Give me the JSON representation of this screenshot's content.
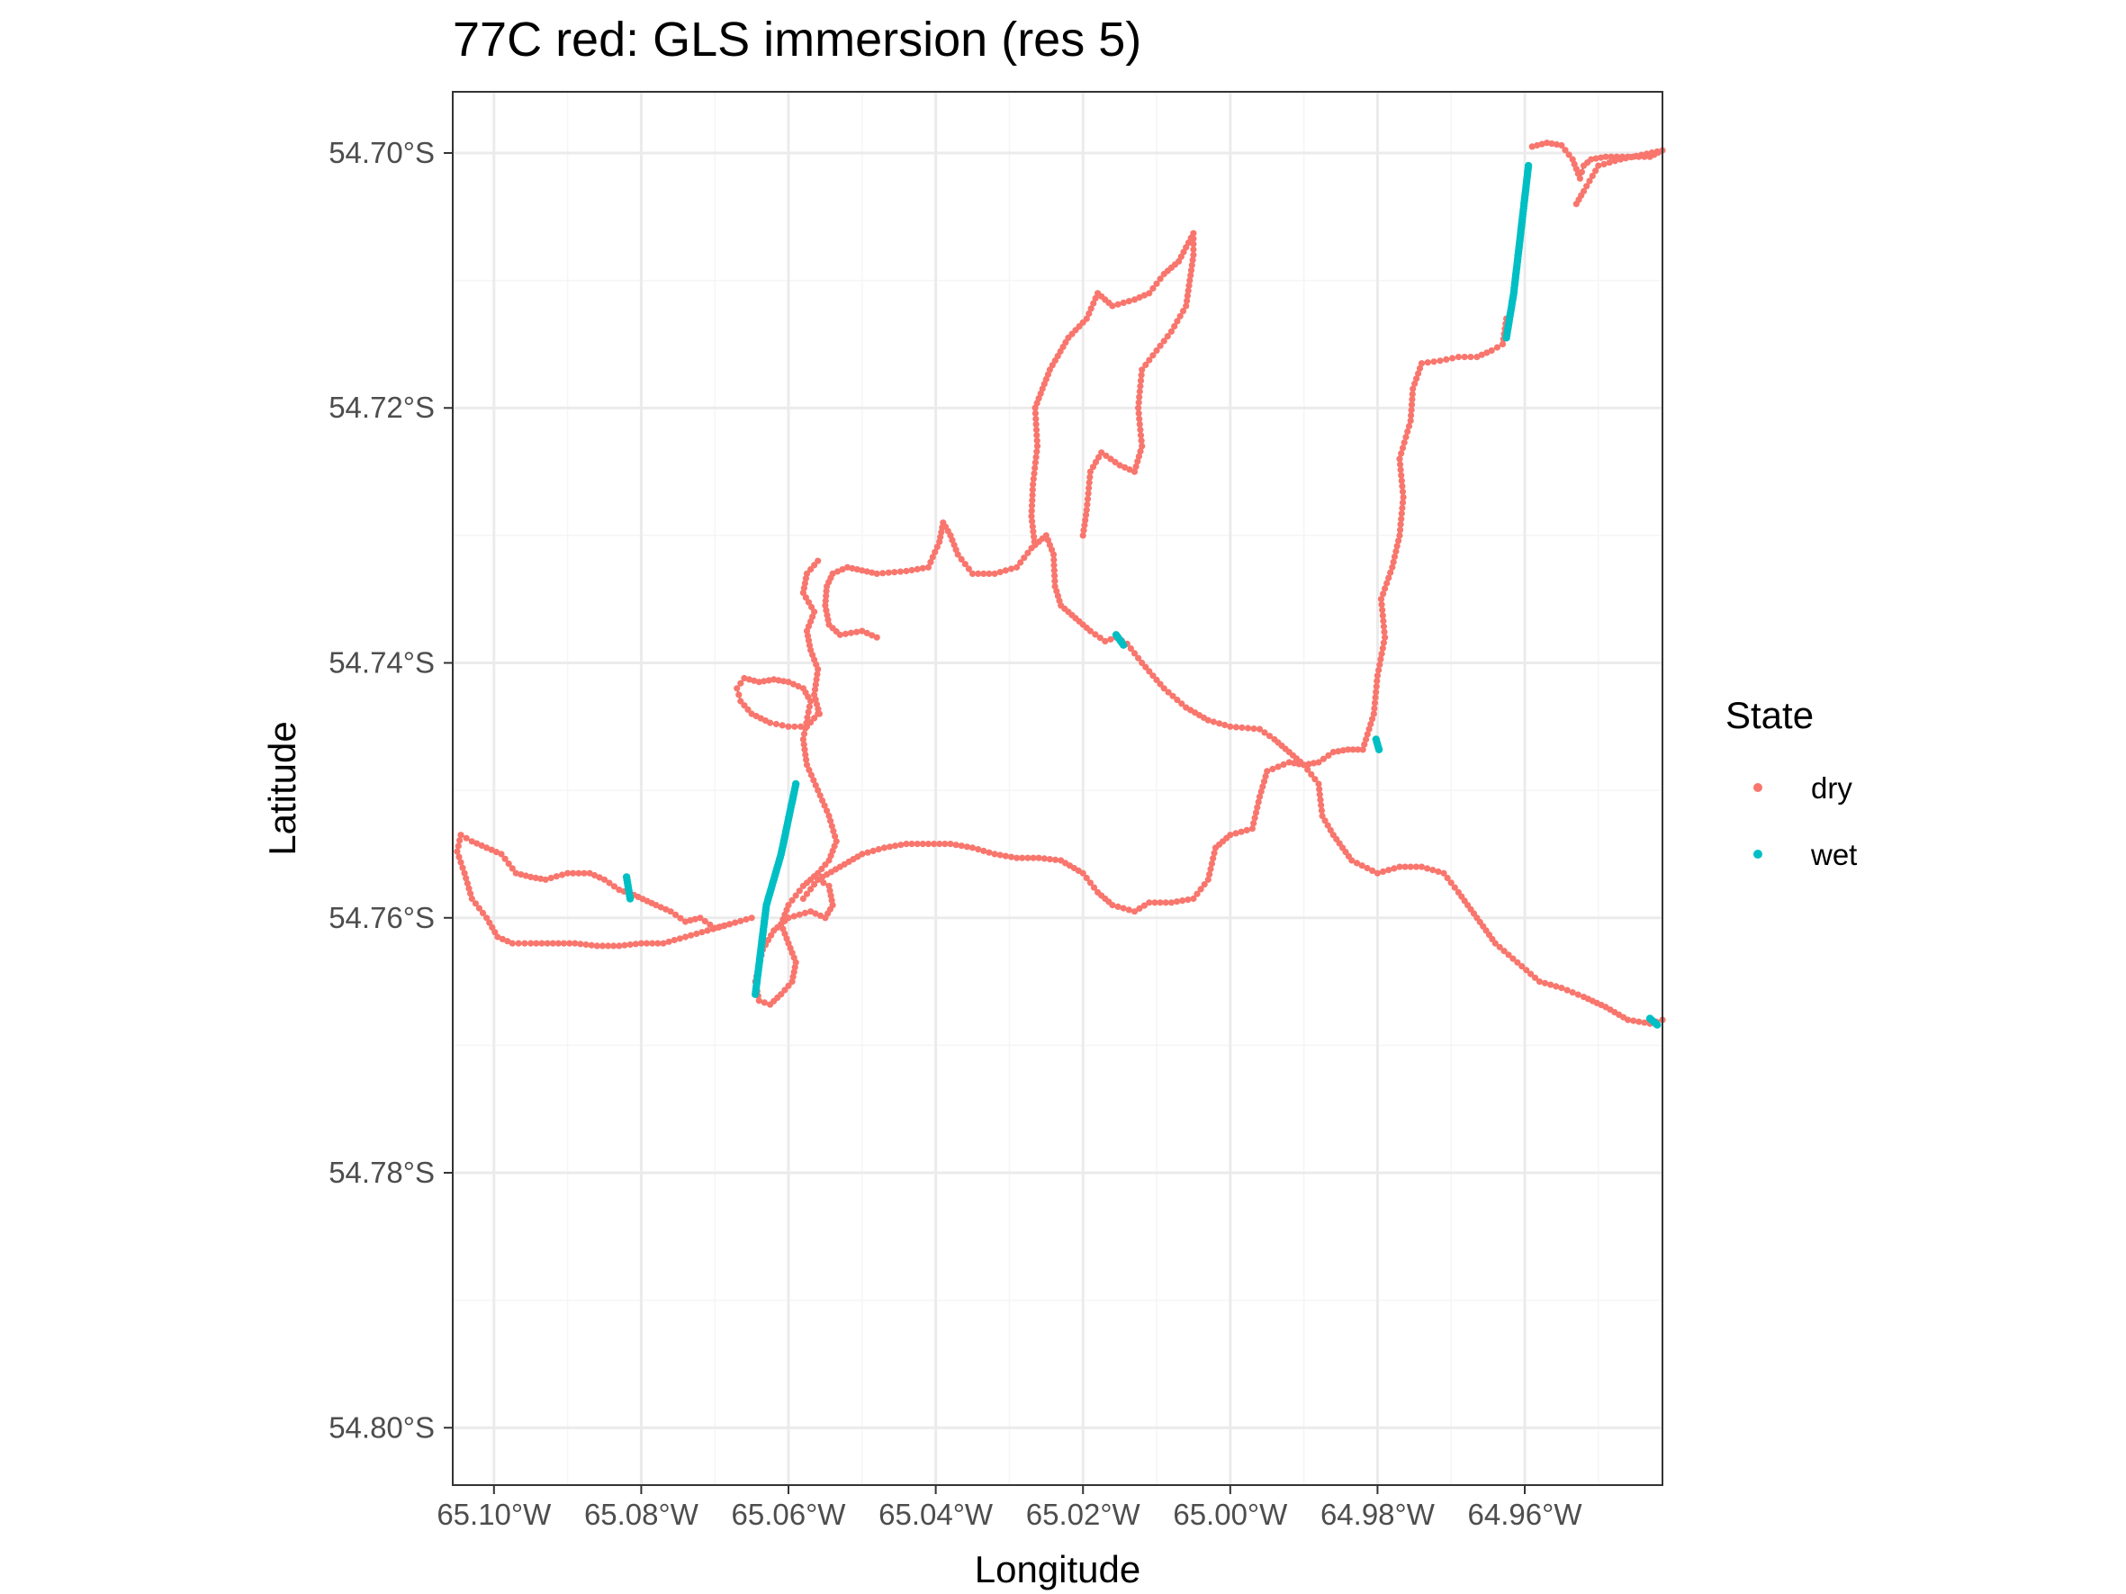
{
  "chart_data": {
    "type": "scatter",
    "title": "77C red: GLS immersion (res 5)",
    "xlabel": "Longitude",
    "ylabel": "Latitude",
    "x_unit": "degrees longitude (negative = W)",
    "y_unit": "degrees latitude (negative = S)",
    "xlim": [
      -65.1056,
      -64.9413
    ],
    "ylim": [
      -54.8045,
      -54.6952
    ],
    "x_ticks": [
      -65.1,
      -65.08,
      -65.06,
      -65.04,
      -65.02,
      -65.0,
      -64.98,
      -64.96
    ],
    "x_tick_labels": [
      "65.10°W",
      "65.08°W",
      "65.06°W",
      "65.04°W",
      "65.02°W",
      "65.00°W",
      "64.98°W",
      "64.96°W"
    ],
    "y_ticks": [
      -54.7,
      -54.72,
      -54.74,
      -54.76,
      -54.78,
      -54.8
    ],
    "y_tick_labels": [
      "54.70°S",
      "54.72°S",
      "54.74°S",
      "54.76°S",
      "54.78°S",
      "54.80°S"
    ],
    "grid": true,
    "legend": {
      "title": "State",
      "placement": "right",
      "entries": [
        "dry",
        "wet"
      ]
    },
    "colors": {
      "dry": "#f8766d",
      "wet": "#00bfc4",
      "path": "#000000",
      "grid": "#ebebeb",
      "panel_border": "#333333"
    },
    "paths": [
      {
        "name": "west-loop",
        "state": "dry",
        "points": [
          [
            -65.048,
            -54.738
          ],
          [
            -65.05,
            -54.7375
          ],
          [
            -65.053,
            -54.7378
          ],
          [
            -65.0545,
            -54.737
          ],
          [
            -65.055,
            -54.7355
          ],
          [
            -65.0548,
            -54.734
          ],
          [
            -65.054,
            -54.733
          ],
          [
            -65.052,
            -54.7325
          ],
          [
            -65.048,
            -54.733
          ],
          [
            -65.044,
            -54.7328
          ],
          [
            -65.041,
            -54.7325
          ],
          [
            -65.0395,
            -54.7305
          ],
          [
            -65.039,
            -54.729
          ],
          [
            -65.038,
            -54.73
          ],
          [
            -65.037,
            -54.7315
          ],
          [
            -65.035,
            -54.733
          ],
          [
            -65.032,
            -54.733
          ],
          [
            -65.029,
            -54.7325
          ],
          [
            -65.027,
            -54.731
          ],
          [
            -65.025,
            -54.73
          ],
          [
            -65.024,
            -54.7315
          ],
          [
            -65.0238,
            -54.734
          ],
          [
            -65.023,
            -54.7355
          ],
          [
            -65.021,
            -54.7365
          ],
          [
            -65.019,
            -54.7375
          ],
          [
            -65.017,
            -54.7383
          ],
          [
            -65.0155,
            -54.738
          ],
          [
            -65.014,
            -54.7385
          ],
          [
            -65.012,
            -54.74
          ],
          [
            -65.009,
            -54.742
          ],
          [
            -65.006,
            -54.7435
          ],
          [
            -65.003,
            -54.7445
          ],
          [
            -65.0,
            -54.745
          ],
          [
            -64.996,
            -54.7452
          ],
          [
            -64.994,
            -54.746
          ],
          [
            -64.992,
            -54.747
          ],
          [
            -64.99,
            -54.748
          ],
          [
            -64.988,
            -54.7478
          ],
          [
            -64.986,
            -54.747
          ],
          [
            -64.984,
            -54.7468
          ],
          [
            -64.982,
            -54.7468
          ]
        ]
      },
      {
        "name": "west-loop-2",
        "state": "dry",
        "points": [
          [
            -65.0558,
            -54.744
          ],
          [
            -65.0565,
            -54.7425
          ],
          [
            -65.056,
            -54.7405
          ],
          [
            -65.057,
            -54.739
          ],
          [
            -65.0575,
            -54.7375
          ],
          [
            -65.0565,
            -54.736
          ],
          [
            -65.058,
            -54.7345
          ],
          [
            -65.0575,
            -54.733
          ],
          [
            -65.056,
            -54.732
          ]
        ]
      },
      {
        "name": "west-blob",
        "state": "dry",
        "points": [
          [
            -65.056,
            -54.744
          ],
          [
            -65.0575,
            -54.745
          ],
          [
            -65.06,
            -54.745
          ],
          [
            -65.0625,
            -54.7447
          ],
          [
            -65.065,
            -54.744
          ],
          [
            -65.0665,
            -54.743
          ],
          [
            -65.067,
            -54.742
          ],
          [
            -65.066,
            -54.7412
          ],
          [
            -65.064,
            -54.7415
          ],
          [
            -65.062,
            -54.7413
          ],
          [
            -65.06,
            -54.7415
          ],
          [
            -65.058,
            -54.742
          ],
          [
            -65.057,
            -54.743
          ],
          [
            -65.058,
            -54.746
          ],
          [
            -65.0575,
            -54.748
          ],
          [
            -65.056,
            -54.75
          ],
          [
            -65.0545,
            -54.752
          ],
          [
            -65.0535,
            -54.754
          ],
          [
            -65.0545,
            -54.7555
          ],
          [
            -65.056,
            -54.7565
          ],
          [
            -65.058,
            -54.7575
          ],
          [
            -65.06,
            -54.759
          ],
          [
            -65.061,
            -54.7605
          ],
          [
            -65.06,
            -54.762
          ],
          [
            -65.059,
            -54.7635
          ],
          [
            -65.0595,
            -54.765
          ],
          [
            -65.061,
            -54.766
          ],
          [
            -65.0625,
            -54.7668
          ],
          [
            -65.064,
            -54.7665
          ],
          [
            -65.0645,
            -54.765
          ],
          [
            -65.0635,
            -54.7625
          ],
          [
            -65.062,
            -54.761
          ],
          [
            -65.06,
            -54.76
          ],
          [
            -65.057,
            -54.7595
          ],
          [
            -65.055,
            -54.76
          ],
          [
            -65.054,
            -54.759
          ],
          [
            -65.0545,
            -54.7575
          ],
          [
            -65.056,
            -54.757
          ]
        ]
      },
      {
        "name": "south-west-loop",
        "state": "dry",
        "points": [
          [
            -65.065,
            -54.76
          ],
          [
            -65.068,
            -54.7605
          ],
          [
            -65.07,
            -54.7608
          ],
          [
            -65.072,
            -54.76
          ],
          [
            -65.074,
            -54.7603
          ],
          [
            -65.076,
            -54.7595
          ],
          [
            -65.078,
            -54.759
          ],
          [
            -65.081,
            -54.7582
          ],
          [
            -65.083,
            -54.7578
          ],
          [
            -65.085,
            -54.757
          ],
          [
            -65.087,
            -54.7565
          ],
          [
            -65.09,
            -54.7565
          ],
          [
            -65.093,
            -54.757
          ],
          [
            -65.095,
            -54.7568
          ],
          [
            -65.097,
            -54.7565
          ],
          [
            -65.099,
            -54.755
          ],
          [
            -65.101,
            -54.7545
          ],
          [
            -65.103,
            -54.754
          ],
          [
            -65.1045,
            -54.7535
          ],
          [
            -65.105,
            -54.7548
          ],
          [
            -65.104,
            -54.7565
          ],
          [
            -65.103,
            -54.7585
          ],
          [
            -65.101,
            -54.76
          ],
          [
            -65.0995,
            -54.7615
          ],
          [
            -65.0975,
            -54.762
          ],
          [
            -65.095,
            -54.762
          ],
          [
            -65.092,
            -54.762
          ],
          [
            -65.089,
            -54.762
          ],
          [
            -65.086,
            -54.7622
          ],
          [
            -65.083,
            -54.7622
          ],
          [
            -65.08,
            -54.762
          ],
          [
            -65.077,
            -54.762
          ],
          [
            -65.074,
            -54.7615
          ],
          [
            -65.071,
            -54.761
          ],
          [
            -65.068,
            -54.7605
          ]
        ]
      },
      {
        "name": "central-south-arc",
        "state": "dry",
        "points": [
          [
            -65.058,
            -54.7585
          ],
          [
            -65.056,
            -54.757
          ],
          [
            -65.053,
            -54.756
          ],
          [
            -65.05,
            -54.755
          ],
          [
            -65.047,
            -54.7545
          ],
          [
            -65.044,
            -54.7542
          ],
          [
            -65.041,
            -54.7542
          ],
          [
            -65.038,
            -54.7542
          ],
          [
            -65.035,
            -54.7545
          ],
          [
            -65.032,
            -54.755
          ],
          [
            -65.029,
            -54.7553
          ],
          [
            -65.026,
            -54.7553
          ],
          [
            -65.023,
            -54.7555
          ],
          [
            -65.02,
            -54.7565
          ],
          [
            -65.018,
            -54.758
          ],
          [
            -65.016,
            -54.759
          ],
          [
            -65.013,
            -54.7595
          ],
          [
            -65.011,
            -54.7588
          ],
          [
            -65.008,
            -54.7588
          ],
          [
            -65.005,
            -54.7585
          ],
          [
            -65.003,
            -54.757
          ],
          [
            -65.002,
            -54.7545
          ],
          [
            -65.0,
            -54.7535
          ],
          [
            -64.997,
            -54.753
          ],
          [
            -64.996,
            -54.7505
          ],
          [
            -64.995,
            -54.7485
          ],
          [
            -64.992,
            -54.7478
          ],
          [
            -64.99,
            -54.748
          ],
          [
            -64.988,
            -54.7495
          ],
          [
            -64.9875,
            -54.752
          ],
          [
            -64.986,
            -54.7535
          ],
          [
            -64.9835,
            -54.7555
          ],
          [
            -64.98,
            -54.7565
          ],
          [
            -64.977,
            -54.756
          ],
          [
            -64.974,
            -54.756
          ],
          [
            -64.971,
            -54.7565
          ],
          [
            -64.969,
            -54.758
          ],
          [
            -64.9665,
            -54.76
          ],
          [
            -64.964,
            -54.762
          ],
          [
            -64.961,
            -54.7635
          ],
          [
            -64.958,
            -54.765
          ],
          [
            -64.955,
            -54.7655
          ],
          [
            -64.952,
            -54.7662
          ],
          [
            -64.949,
            -54.767
          ],
          [
            -64.946,
            -54.768
          ],
          [
            -64.943,
            -54.7683
          ],
          [
            -64.9413,
            -54.768
          ]
        ]
      },
      {
        "name": "north-central-loop",
        "state": "dry",
        "points": [
          [
            -65.0266,
            -54.7305
          ],
          [
            -65.027,
            -54.7285
          ],
          [
            -65.0268,
            -54.726
          ],
          [
            -65.0262,
            -54.723
          ],
          [
            -65.0265,
            -54.72
          ],
          [
            -65.0245,
            -54.717
          ],
          [
            -65.022,
            -54.7145
          ],
          [
            -65.0195,
            -54.713
          ],
          [
            -65.018,
            -54.711
          ],
          [
            -65.016,
            -54.712
          ],
          [
            -65.013,
            -54.7115
          ],
          [
            -65.011,
            -54.711
          ],
          [
            -65.009,
            -54.7095
          ],
          [
            -65.007,
            -54.7085
          ],
          [
            -65.005,
            -54.7063
          ],
          [
            -65.005,
            -54.708
          ],
          [
            -65.006,
            -54.712
          ],
          [
            -65.008,
            -54.714
          ],
          [
            -65.01,
            -54.7155
          ],
          [
            -65.012,
            -54.717
          ],
          [
            -65.0125,
            -54.72
          ],
          [
            -65.012,
            -54.723
          ],
          [
            -65.013,
            -54.725
          ],
          [
            -65.015,
            -54.7245
          ],
          [
            -65.0175,
            -54.7235
          ],
          [
            -65.019,
            -54.725
          ],
          [
            -65.0195,
            -54.728
          ],
          [
            -65.02,
            -54.73
          ]
        ]
      },
      {
        "name": "east-spur",
        "state": "dry",
        "points": [
          [
            -64.982,
            -54.7468
          ],
          [
            -64.9805,
            -54.744
          ],
          [
            -64.98,
            -54.741
          ],
          [
            -64.979,
            -54.738
          ],
          [
            -64.9795,
            -54.735
          ],
          [
            -64.978,
            -54.7325
          ],
          [
            -64.977,
            -54.73
          ],
          [
            -64.9765,
            -54.727
          ],
          [
            -64.977,
            -54.724
          ],
          [
            -64.9755,
            -54.721
          ],
          [
            -64.9752,
            -54.7185
          ],
          [
            -64.974,
            -54.7165
          ],
          [
            -64.9715,
            -54.7163
          ],
          [
            -64.969,
            -54.716
          ],
          [
            -64.9665,
            -54.716
          ],
          [
            -64.9645,
            -54.7155
          ],
          [
            -64.963,
            -54.715
          ],
          [
            -64.9625,
            -54.713
          ]
        ]
      },
      {
        "name": "north-east-tail",
        "state": "dry",
        "points": [
          [
            -64.959,
            -54.6995
          ],
          [
            -64.957,
            -54.6992
          ],
          [
            -64.955,
            -54.6994
          ],
          [
            -64.9535,
            -54.7005
          ],
          [
            -64.9525,
            -54.702
          ],
          [
            -64.952,
            -54.701
          ],
          [
            -64.951,
            -54.7005
          ],
          [
            -64.949,
            -54.7003
          ],
          [
            -64.946,
            -54.7003
          ],
          [
            -64.943,
            -54.7003
          ],
          [
            -64.9413,
            -54.6998
          ],
          [
            -64.947,
            -54.7005
          ],
          [
            -64.95,
            -54.701
          ],
          [
            -64.952,
            -54.703
          ],
          [
            -64.953,
            -54.704
          ]
        ]
      }
    ],
    "wet_segments": [
      {
        "name": "wet-ne-spur",
        "state": "wet",
        "points": [
          [
            -64.9625,
            -54.7145
          ],
          [
            -64.9615,
            -54.711
          ],
          [
            -64.9605,
            -54.706
          ],
          [
            -64.9595,
            -54.701
          ]
        ]
      },
      {
        "name": "wet-diagonal",
        "state": "wet",
        "points": [
          [
            -65.0645,
            -54.766
          ],
          [
            -65.063,
            -54.759
          ],
          [
            -65.061,
            -54.755
          ],
          [
            -65.059,
            -54.7495
          ]
        ]
      },
      {
        "name": "wet-small-w",
        "state": "wet",
        "points": [
          [
            -65.082,
            -54.7568
          ],
          [
            -65.0815,
            -54.7585
          ]
        ]
      },
      {
        "name": "wet-small-c",
        "state": "wet",
        "points": [
          [
            -65.0155,
            -54.7378
          ],
          [
            -65.0145,
            -54.7386
          ]
        ]
      },
      {
        "name": "wet-small-e",
        "state": "wet",
        "points": [
          [
            -64.9802,
            -54.746
          ],
          [
            -64.9798,
            -54.7468
          ]
        ]
      },
      {
        "name": "wet-small-se",
        "state": "wet",
        "points": [
          [
            -64.943,
            -54.7679
          ],
          [
            -64.942,
            -54.7684
          ]
        ]
      }
    ]
  }
}
